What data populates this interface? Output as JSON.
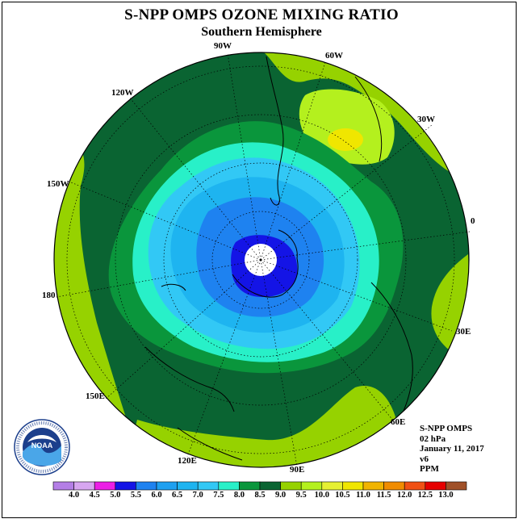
{
  "title": "S-NPP OMPS OZONE MIXING RATIO",
  "subtitle": "Southern Hemisphere",
  "longitude_labels": [
    "90W",
    "60W",
    "30W",
    "0",
    "30E",
    "60E",
    "90E",
    "120E",
    "150E",
    "180",
    "150W",
    "120W"
  ],
  "info": {
    "instrument": "S-NPP OMPS",
    "level": "02 hPa",
    "date": "January 11, 2017",
    "version": "v6",
    "units": "PPM"
  },
  "logo": {
    "text": "NOAA",
    "ring_text": "NATIONAL OCEANIC AND ATMOSPHERIC ADMINISTRATION · U.S. DEPARTMENT OF COMMERCE"
  },
  "colorbar": {
    "labels": [
      "4.0",
      "4.5",
      "5.0",
      "5.5",
      "6.0",
      "6.5",
      "7.0",
      "7.5",
      "8.0",
      "8.5",
      "9.0",
      "9.5",
      "10.0",
      "10.5",
      "11.0",
      "11.5",
      "12.0",
      "12.5",
      "13.0"
    ],
    "colors": [
      "#b47ee6",
      "#d7a6f0",
      "#ec1ee6",
      "#1414e6",
      "#1e82f0",
      "#1ea0f0",
      "#1eb4f0",
      "#32c8f5",
      "#28f0c8",
      "#0a963c",
      "#0a6432",
      "#96d200",
      "#b4f01e",
      "#e6f032",
      "#f0e600",
      "#f0b400",
      "#f08c00",
      "#f05014",
      "#e60000",
      "#a05028"
    ]
  },
  "contour_colors": {
    "outer": "#0a6432",
    "band_85": "#0a963c",
    "band_80": "#28f0c8",
    "band_75": "#32c8f5",
    "band_70": "#1eb4f0",
    "band_65": "#1e82f0",
    "band_60": "#1414e6",
    "light_green": "#96d200",
    "yellow_green": "#b4f01e",
    "yellow": "#e6f032",
    "bright_yellow": "#f0e600"
  }
}
